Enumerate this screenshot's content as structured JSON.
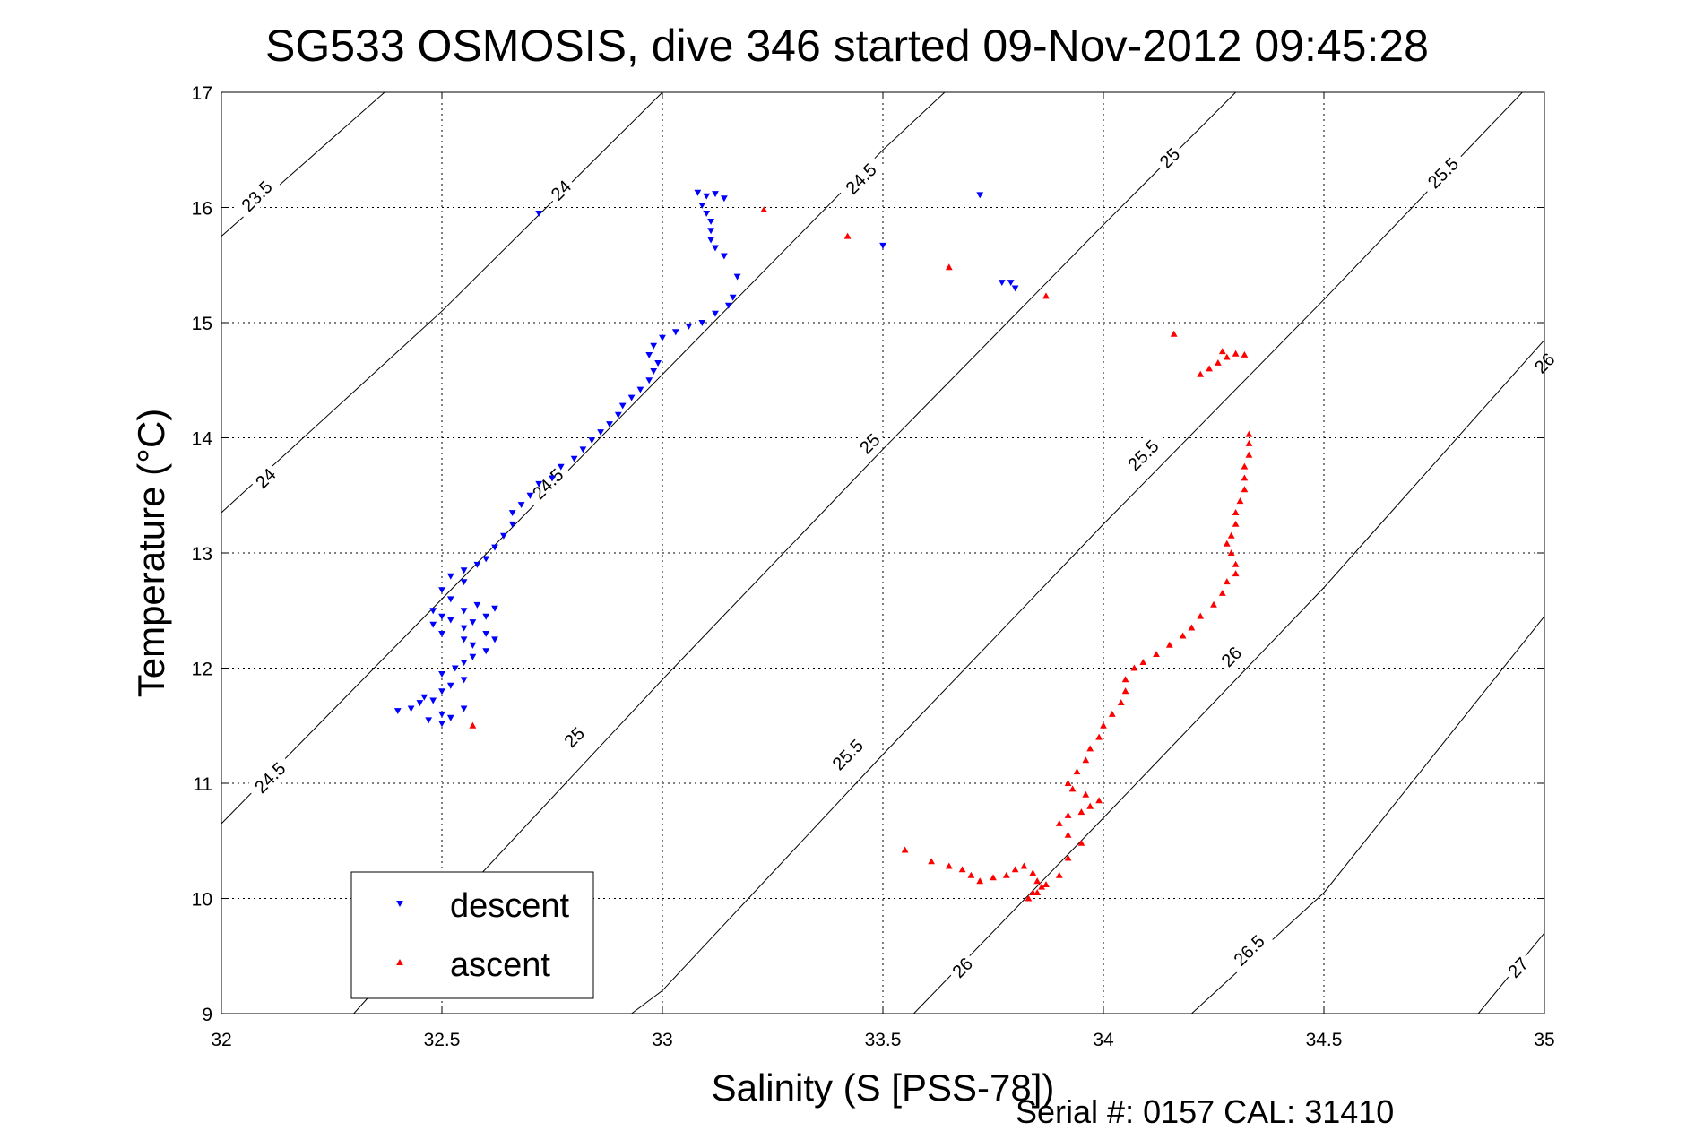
{
  "chart_data": {
    "type": "scatter",
    "title": "SG533 OSMOSIS, dive 346 started 09-Nov-2012 09:45:28",
    "xlabel": "Salinity (S [PSS-78])",
    "ylabel": "Temperature (°C)",
    "xlim": [
      32,
      35
    ],
    "ylim": [
      9,
      17
    ],
    "xticks": [
      32,
      32.5,
      33,
      33.5,
      34,
      34.5,
      35
    ],
    "yticks": [
      9,
      10,
      11,
      12,
      13,
      14,
      15,
      16,
      17
    ],
    "xtick_labels": [
      "32",
      "32.5",
      "33",
      "33.5",
      "34",
      "34.5",
      "35"
    ],
    "ytick_labels": [
      "9",
      "10",
      "11",
      "12",
      "13",
      "14",
      "15",
      "16",
      "17"
    ],
    "grid": true,
    "legend_position": "bottom-left",
    "footer": "Serial #: 0157  CAL: 31410",
    "contours": [
      {
        "level": 23.5,
        "label": "23.5",
        "points": [
          [
            32.0,
            15.75
          ],
          [
            32.37,
            17.0
          ]
        ]
      },
      {
        "level": 24.0,
        "label": "24",
        "points": [
          [
            32.0,
            13.35
          ],
          [
            32.5,
            15.1
          ],
          [
            33.0,
            17.0
          ]
        ]
      },
      {
        "level": 24.5,
        "label": "24.5",
        "points": [
          [
            32.0,
            10.65
          ],
          [
            32.5,
            12.6
          ],
          [
            33.0,
            14.55
          ],
          [
            33.5,
            16.5
          ],
          [
            33.64,
            17.0
          ]
        ]
      },
      {
        "level": 25.0,
        "label": "25",
        "points": [
          [
            32.3,
            9.0
          ],
          [
            32.5,
            9.85
          ],
          [
            33.0,
            11.9
          ],
          [
            33.5,
            13.9
          ],
          [
            34.0,
            15.85
          ],
          [
            34.3,
            17.0
          ]
        ]
      },
      {
        "level": 25.5,
        "label": "25.5",
        "points": [
          [
            32.93,
            9.0
          ],
          [
            33.0,
            9.2
          ],
          [
            33.5,
            11.25
          ],
          [
            34.0,
            13.25
          ],
          [
            34.5,
            15.2
          ],
          [
            34.95,
            17.0
          ]
        ]
      },
      {
        "level": 26.0,
        "label": "26",
        "points": [
          [
            33.57,
            9.0
          ],
          [
            34.0,
            10.7
          ],
          [
            34.5,
            12.7
          ],
          [
            35.0,
            14.85
          ]
        ]
      },
      {
        "level": 26.5,
        "label": "26.5",
        "points": [
          [
            34.2,
            9.0
          ],
          [
            34.5,
            10.05
          ],
          [
            35.0,
            12.45
          ]
        ]
      },
      {
        "level": 27.0,
        "label": "27",
        "points": [
          [
            34.85,
            9.0
          ],
          [
            35.0,
            9.7
          ]
        ]
      }
    ],
    "contour_labels": [
      {
        "text": "23.5",
        "x": 32.08,
        "y": 16.1
      },
      {
        "text": "24",
        "x": 32.77,
        "y": 16.15
      },
      {
        "text": "24.5",
        "x": 33.45,
        "y": 16.25
      },
      {
        "text": "25",
        "x": 34.15,
        "y": 16.43
      },
      {
        "text": "25.5",
        "x": 34.77,
        "y": 16.3
      },
      {
        "text": "24",
        "x": 32.1,
        "y": 13.65
      },
      {
        "text": "24.5",
        "x": 32.74,
        "y": 13.6
      },
      {
        "text": "25",
        "x": 33.47,
        "y": 13.95
      },
      {
        "text": "25.5",
        "x": 34.09,
        "y": 13.85
      },
      {
        "text": "26",
        "x": 35.0,
        "y": 14.65
      },
      {
        "text": "24.5",
        "x": 32.11,
        "y": 11.05
      },
      {
        "text": "25",
        "x": 32.8,
        "y": 11.4
      },
      {
        "text": "25.5",
        "x": 33.42,
        "y": 11.25
      },
      {
        "text": "26",
        "x": 34.29,
        "y": 12.1
      },
      {
        "text": "26",
        "x": 33.68,
        "y": 9.4
      },
      {
        "text": "26.5",
        "x": 34.33,
        "y": 9.55
      },
      {
        "text": "27",
        "x": 34.94,
        "y": 9.4
      }
    ],
    "series": [
      {
        "name": "descent",
        "color": "#0000ff",
        "marker": "triangle-down",
        "values": [
          [
            32.4,
            11.63
          ],
          [
            32.43,
            11.65
          ],
          [
            32.45,
            11.7
          ],
          [
            32.46,
            11.75
          ],
          [
            32.48,
            11.72
          ],
          [
            32.5,
            11.6
          ],
          [
            32.47,
            11.55
          ],
          [
            32.5,
            11.52
          ],
          [
            32.52,
            11.57
          ],
          [
            32.55,
            11.65
          ],
          [
            32.5,
            11.8
          ],
          [
            32.52,
            11.85
          ],
          [
            32.55,
            11.9
          ],
          [
            32.5,
            11.95
          ],
          [
            32.53,
            12.0
          ],
          [
            32.55,
            12.05
          ],
          [
            32.57,
            12.1
          ],
          [
            32.6,
            12.15
          ],
          [
            32.57,
            12.2
          ],
          [
            32.55,
            12.25
          ],
          [
            32.5,
            12.3
          ],
          [
            32.48,
            12.38
          ],
          [
            32.5,
            12.45
          ],
          [
            32.48,
            12.5
          ],
          [
            32.52,
            12.42
          ],
          [
            32.55,
            12.35
          ],
          [
            32.57,
            12.4
          ],
          [
            32.6,
            12.45
          ],
          [
            32.62,
            12.52
          ],
          [
            32.58,
            12.55
          ],
          [
            32.55,
            12.5
          ],
          [
            32.6,
            12.3
          ],
          [
            32.62,
            12.25
          ],
          [
            32.52,
            12.6
          ],
          [
            32.5,
            12.68
          ],
          [
            32.55,
            12.75
          ],
          [
            32.52,
            12.8
          ],
          [
            32.55,
            12.85
          ],
          [
            32.58,
            12.9
          ],
          [
            32.6,
            12.95
          ],
          [
            32.62,
            13.05
          ],
          [
            32.64,
            13.15
          ],
          [
            32.66,
            13.25
          ],
          [
            32.66,
            13.35
          ],
          [
            32.68,
            13.42
          ],
          [
            32.7,
            13.5
          ],
          [
            32.72,
            13.6
          ],
          [
            32.75,
            13.65
          ],
          [
            32.77,
            13.75
          ],
          [
            32.8,
            13.82
          ],
          [
            32.82,
            13.9
          ],
          [
            32.84,
            13.98
          ],
          [
            32.86,
            14.05
          ],
          [
            32.88,
            14.12
          ],
          [
            32.9,
            14.2
          ],
          [
            32.91,
            14.28
          ],
          [
            32.93,
            14.35
          ],
          [
            32.95,
            14.42
          ],
          [
            32.97,
            14.5
          ],
          [
            32.98,
            14.58
          ],
          [
            32.99,
            14.65
          ],
          [
            32.97,
            14.72
          ],
          [
            32.98,
            14.8
          ],
          [
            33.0,
            14.87
          ],
          [
            33.03,
            14.92
          ],
          [
            33.06,
            14.97
          ],
          [
            33.09,
            15.0
          ],
          [
            33.12,
            15.08
          ],
          [
            33.15,
            15.15
          ],
          [
            33.16,
            15.22
          ],
          [
            33.17,
            15.4
          ],
          [
            33.14,
            15.58
          ],
          [
            33.12,
            15.65
          ],
          [
            33.11,
            15.72
          ],
          [
            33.11,
            15.8
          ],
          [
            33.11,
            15.88
          ],
          [
            33.1,
            15.95
          ],
          [
            33.09,
            16.02
          ],
          [
            33.1,
            16.1
          ],
          [
            33.08,
            16.13
          ],
          [
            33.12,
            16.12
          ],
          [
            33.14,
            16.08
          ],
          [
            32.72,
            15.95
          ],
          [
            33.5,
            15.67
          ],
          [
            33.72,
            16.11
          ],
          [
            33.77,
            15.35
          ],
          [
            33.79,
            15.35
          ],
          [
            33.8,
            15.3
          ]
        ]
      },
      {
        "name": "ascent",
        "color": "#ff0000",
        "marker": "triangle-up",
        "values": [
          [
            32.57,
            11.5
          ],
          [
            33.23,
            15.98
          ],
          [
            33.42,
            15.75
          ],
          [
            33.65,
            15.48
          ],
          [
            33.87,
            15.23
          ],
          [
            33.55,
            10.42
          ],
          [
            33.61,
            10.32
          ],
          [
            33.65,
            10.28
          ],
          [
            33.68,
            10.25
          ],
          [
            33.7,
            10.2
          ],
          [
            33.72,
            10.15
          ],
          [
            33.75,
            10.18
          ],
          [
            33.78,
            10.2
          ],
          [
            33.8,
            10.25
          ],
          [
            33.82,
            10.28
          ],
          [
            33.84,
            10.22
          ],
          [
            33.85,
            10.15
          ],
          [
            33.86,
            10.1
          ],
          [
            33.84,
            10.05
          ],
          [
            33.83,
            10.0
          ],
          [
            33.85,
            10.05
          ],
          [
            33.87,
            10.12
          ],
          [
            33.9,
            10.2
          ],
          [
            33.92,
            10.35
          ],
          [
            33.95,
            10.48
          ],
          [
            33.92,
            10.55
          ],
          [
            33.9,
            10.65
          ],
          [
            33.92,
            10.72
          ],
          [
            33.95,
            10.75
          ],
          [
            33.97,
            10.8
          ],
          [
            33.99,
            10.85
          ],
          [
            33.96,
            10.9
          ],
          [
            33.93,
            10.95
          ],
          [
            33.92,
            11.0
          ],
          [
            33.94,
            11.1
          ],
          [
            33.96,
            11.2
          ],
          [
            33.97,
            11.3
          ],
          [
            33.99,
            11.4
          ],
          [
            34.0,
            11.5
          ],
          [
            34.02,
            11.6
          ],
          [
            34.04,
            11.7
          ],
          [
            34.05,
            11.8
          ],
          [
            34.05,
            11.9
          ],
          [
            34.07,
            12.0
          ],
          [
            34.09,
            12.05
          ],
          [
            34.12,
            12.12
          ],
          [
            34.15,
            12.2
          ],
          [
            34.18,
            12.28
          ],
          [
            34.2,
            12.35
          ],
          [
            34.22,
            12.45
          ],
          [
            34.25,
            12.55
          ],
          [
            34.27,
            12.65
          ],
          [
            34.28,
            12.75
          ],
          [
            34.3,
            12.82
          ],
          [
            34.3,
            12.9
          ],
          [
            34.29,
            13.0
          ],
          [
            34.28,
            13.08
          ],
          [
            34.29,
            13.15
          ],
          [
            34.3,
            13.25
          ],
          [
            34.3,
            13.35
          ],
          [
            34.31,
            13.45
          ],
          [
            34.32,
            13.55
          ],
          [
            34.32,
            13.65
          ],
          [
            34.32,
            13.75
          ],
          [
            34.33,
            13.85
          ],
          [
            34.33,
            13.95
          ],
          [
            34.33,
            14.03
          ],
          [
            34.22,
            14.55
          ],
          [
            34.24,
            14.6
          ],
          [
            34.26,
            14.65
          ],
          [
            34.28,
            14.7
          ],
          [
            34.27,
            14.75
          ],
          [
            34.3,
            14.73
          ],
          [
            34.32,
            14.72
          ],
          [
            34.16,
            14.9
          ]
        ]
      }
    ]
  }
}
